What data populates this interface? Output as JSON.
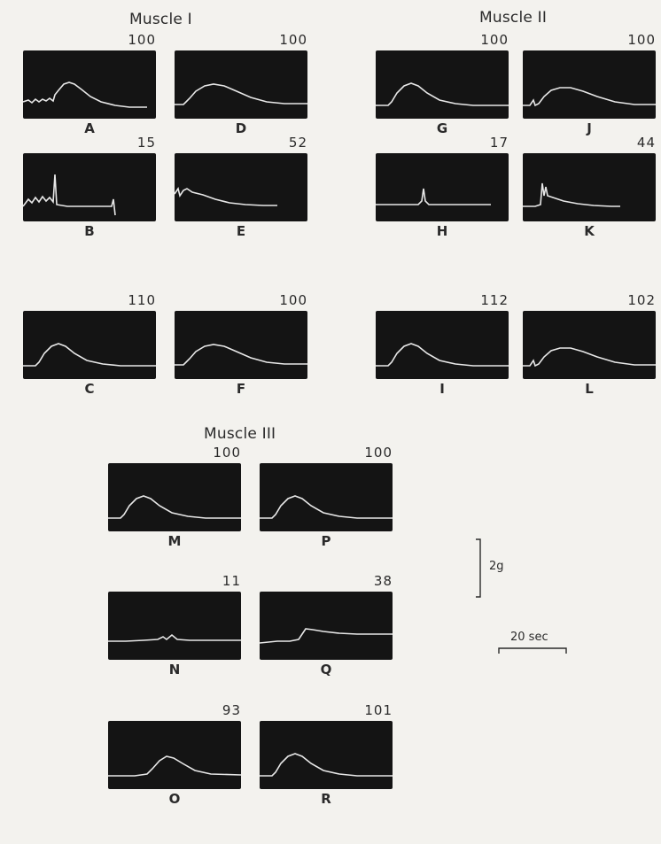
{
  "groups": [
    {
      "title": "Muscle I",
      "panels": [
        {
          "label": "A",
          "value": "100",
          "trace": "noisy-twitch"
        },
        {
          "label": "D",
          "value": "100",
          "trace": "broad-twitch"
        },
        {
          "label": "B",
          "value": "15",
          "trace": "noisy-spike"
        },
        {
          "label": "E",
          "value": "52",
          "trace": "decay"
        },
        {
          "label": "C",
          "value": "110",
          "trace": "twitch"
        },
        {
          "label": "F",
          "value": "100",
          "trace": "broad-twitch"
        }
      ]
    },
    {
      "title": "Muscle II",
      "panels": [
        {
          "label": "G",
          "value": "100",
          "trace": "twitch"
        },
        {
          "label": "J",
          "value": "100",
          "trace": "late-broad"
        },
        {
          "label": "H",
          "value": "17",
          "trace": "spike"
        },
        {
          "label": "K",
          "value": "44",
          "trace": "spike-decay"
        },
        {
          "label": "I",
          "value": "112",
          "trace": "twitch"
        },
        {
          "label": "L",
          "value": "102",
          "trace": "late-broad"
        }
      ]
    },
    {
      "title": "Muscle III",
      "panels": [
        {
          "label": "M",
          "value": "100",
          "trace": "twitch"
        },
        {
          "label": "P",
          "value": "100",
          "trace": "twitch"
        },
        {
          "label": "N",
          "value": "11",
          "trace": "flat-bump"
        },
        {
          "label": "Q",
          "value": "38",
          "trace": "step"
        },
        {
          "label": "O",
          "value": "93",
          "trace": "late-twitch"
        },
        {
          "label": "R",
          "value": "101",
          "trace": "twitch"
        }
      ]
    }
  ],
  "scale": {
    "force_label": "2g",
    "time_label": "20 sec"
  }
}
